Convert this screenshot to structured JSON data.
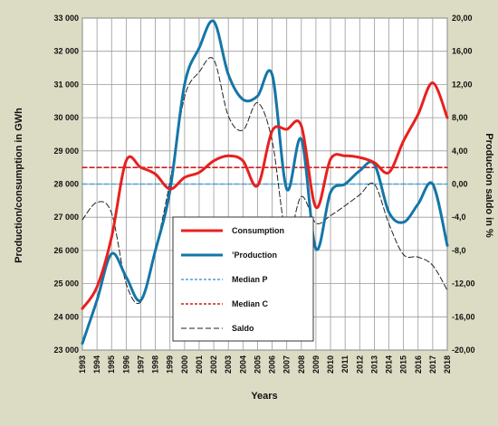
{
  "chart_data": {
    "type": "line",
    "title": "",
    "xlabel": "Years",
    "ylabel_left": "Production/consumption in GWh",
    "ylabel_right": "Production saldo in %",
    "ylim_left": [
      23000,
      33000
    ],
    "ylim_right": [
      -20,
      20
    ],
    "grid": true,
    "legend_placement": "center",
    "x": [
      "1993",
      "1994",
      "1995",
      "1996",
      "1997",
      "1998",
      "1999",
      "2000",
      "2001",
      "2002",
      "2003",
      "2004",
      "2005",
      "2006",
      "2007",
      "2008",
      "2009",
      "2010",
      "2011",
      "2012",
      "2013",
      "2014",
      "2015",
      "2016",
      "2017",
      "2018"
    ],
    "left_ticks": [
      "23 000",
      "24 000",
      "25 000",
      "26 000",
      "27 000",
      "28 000",
      "29 000",
      "30 000",
      "31 000",
      "32 000",
      "33 000"
    ],
    "right_ticks": [
      "-20,00",
      "-16,00",
      "-12,00",
      "-8,0",
      "-4,0",
      "0,00",
      "4,00",
      "8,00",
      "12,00",
      "16,00",
      "20,00"
    ],
    "series": [
      {
        "name": "Consumption",
        "axis": "left",
        "color": "#e8201f",
        "style": "solid",
        "values": [
          24250,
          24900,
          26400,
          28700,
          28500,
          28300,
          27850,
          28200,
          28350,
          28700,
          28850,
          28700,
          27950,
          29600,
          29650,
          29750,
          27300,
          28750,
          28850,
          28800,
          28650,
          28350,
          29300,
          30100,
          31050,
          30000
        ]
      },
      {
        "name": "Production",
        "axis": "left",
        "color": "#1476a8",
        "style": "solid",
        "values": [
          23200,
          24500,
          25900,
          25200,
          24500,
          26000,
          27800,
          31000,
          32100,
          32900,
          31300,
          30550,
          30650,
          31300,
          27850,
          29350,
          26050,
          27750,
          28000,
          28400,
          28600,
          27150,
          26850,
          27400,
          28000,
          26150
        ]
      },
      {
        "name": "Median P",
        "axis": "left",
        "color": "#4f9fd8",
        "style": "dashed",
        "values": [
          28000,
          28000,
          28000,
          28000,
          28000,
          28000,
          28000,
          28000,
          28000,
          28000,
          28000,
          28000,
          28000,
          28000,
          28000,
          28000,
          28000,
          28000,
          28000,
          28000,
          28000,
          28000,
          28000,
          28000,
          28000,
          28000
        ]
      },
      {
        "name": "Median C",
        "axis": "left",
        "color": "#cc2020",
        "style": "dashed",
        "values": [
          28500,
          28500,
          28500,
          28500,
          28500,
          28500,
          28500,
          28500,
          28500,
          28500,
          28500,
          28500,
          28500,
          28500,
          28500,
          28500,
          28500,
          28500,
          28500,
          28500,
          28500,
          28500,
          28500,
          28500,
          28500,
          28500
        ]
      },
      {
        "name": "Saldo",
        "axis": "right",
        "color": "#222222",
        "style": "dashed",
        "values": [
          -4.3,
          -2.2,
          -3.5,
          -12.0,
          -14.2,
          -8.0,
          0.3,
          10.5,
          13.5,
          15.0,
          8.2,
          6.5,
          9.8,
          5.2,
          -6.2,
          -1.5,
          -4.7,
          -3.8,
          -2.6,
          -1.3,
          0.0,
          -4.8,
          -8.5,
          -8.8,
          -9.8,
          -12.8
        ]
      }
    ]
  }
}
